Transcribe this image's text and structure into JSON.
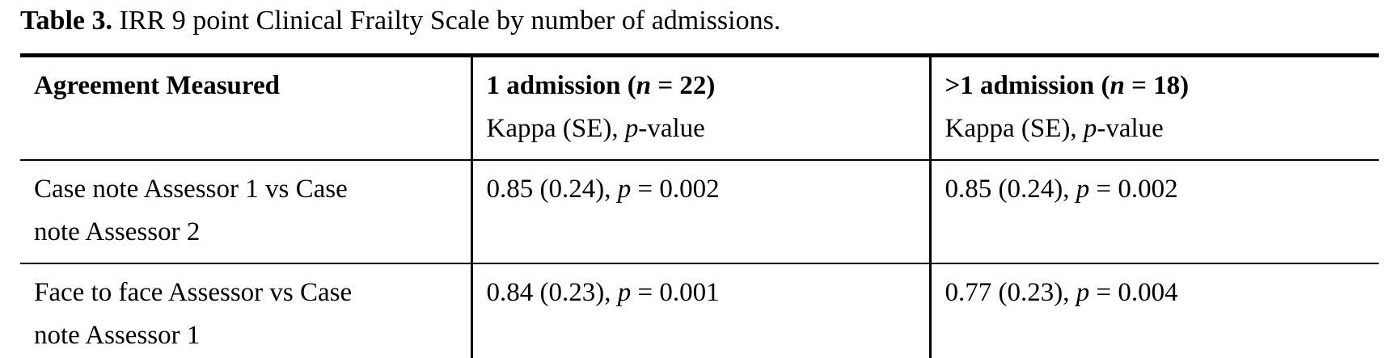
{
  "page": {
    "background": "#ffffff",
    "text_color": "#000000",
    "border_color": "#000000"
  },
  "title": {
    "label": "Table 3.",
    "text": " IRR 9 point Clinical Frailty Scale by number of admissions."
  },
  "table": {
    "header": {
      "col1": {
        "title": "Agreement Measured"
      },
      "col2": {
        "title_pre": "1 admission (",
        "title_n": "n",
        "title_post": " = 22)",
        "sub_pre": "Kappa (SE), ",
        "sub_p": "p",
        "sub_post": "-value"
      },
      "col3": {
        "title_pre": ">1 admission (",
        "title_n": "n",
        "title_post": " = 18)",
        "sub_pre": "Kappa (SE), ",
        "sub_p": "p",
        "sub_post": "-value"
      }
    },
    "rows": [
      {
        "label_line1": "Case note Assessor 1 vs Case",
        "label_line2": "note Assessor 2",
        "col2": {
          "pre": "0.85 (0.24), ",
          "p": "p",
          "post": " = 0.002"
        },
        "col3": {
          "pre": "0.85 (0.24), ",
          "p": "p",
          "post": " = 0.002"
        }
      },
      {
        "label_line1": "Face to face Assessor vs Case",
        "label_line2": "note Assessor 1",
        "col2": {
          "pre": "0.84 (0.23), ",
          "p": "p",
          "post": " = 0.001"
        },
        "col3": {
          "pre": "0.77 (0.23), ",
          "p": "p",
          "post": " = 0.004"
        }
      }
    ]
  }
}
